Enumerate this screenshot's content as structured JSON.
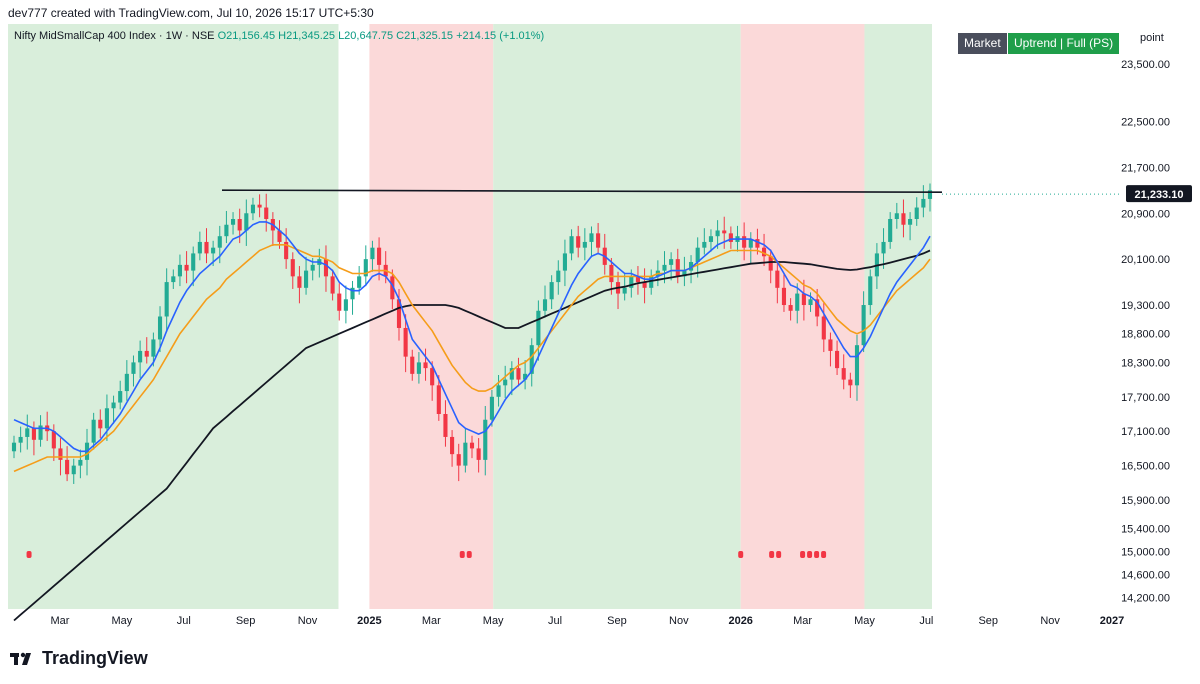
{
  "header": {
    "credit": "dev777 created with TradingView.com, Jul 10, 2026 15:17 UTC+5:30"
  },
  "legend": {
    "symbol": "Nifty MidSmallCap 400 Index · 1W · NSE",
    "ohlc": "O21,156.45  H21,345.25  L20,647.75  C21,325.15  +214.15 (+1.01%)"
  },
  "badges": {
    "market": "Market",
    "trend": "Uptrend | Full (PS)"
  },
  "scale_mode": "point",
  "last_price_label": "21,233.10",
  "footer": {
    "brand": "TradingView",
    "logo_icon": "tradingview-logo-icon"
  },
  "colors": {
    "up": "#22ab94",
    "down": "#f23645",
    "band_green": "#d9eedb",
    "band_red": "#fbd9d9",
    "ema_fast": "#2962ff",
    "ema_mid": "#f59d1a",
    "sma_long": "#131722",
    "price_tag_bg": "#131722"
  },
  "chart_data": {
    "type": "candlestick",
    "title": "Nifty MidSmallCap 400 Index · 1W · NSE",
    "xlabel": "",
    "ylabel": "",
    "grid": false,
    "x_ticks": [
      "Mar",
      "May",
      "Jul",
      "Sep",
      "Nov",
      "2025",
      "Mar",
      "May",
      "Jul",
      "Sep",
      "Nov",
      "2026",
      "Mar",
      "May",
      "Jul",
      "Sep",
      "Nov",
      "2027"
    ],
    "y_ticks": [
      23500,
      22500,
      21700,
      20900,
      20100,
      19300,
      18800,
      18300,
      17700,
      17100,
      16500,
      15900,
      15400,
      15000,
      14600,
      14200
    ],
    "ylim": [
      14000,
      24200
    ],
    "resistance_level": 21233.1,
    "regime_bands": [
      {
        "from": "2024-02",
        "to": "2024-12",
        "regime": "uptrend"
      },
      {
        "from": "2025-01",
        "to": "2025-05",
        "regime": "downtrend"
      },
      {
        "from": "2025-05",
        "to": "2026-01",
        "regime": "uptrend"
      },
      {
        "from": "2026-01",
        "to": "2026-05",
        "regime": "downtrend"
      },
      {
        "from": "2026-05",
        "to": "2026-07",
        "regime": "uptrend"
      }
    ],
    "closes": [
      16900,
      17000,
      17150,
      16950,
      17200,
      17100,
      16800,
      16600,
      16350,
      16500,
      16600,
      16900,
      17300,
      17150,
      17500,
      17600,
      17800,
      18100,
      18300,
      18500,
      18400,
      18700,
      19100,
      19700,
      19800,
      20000,
      19900,
      20200,
      20400,
      20200,
      20300,
      20500,
      20700,
      20800,
      20600,
      20900,
      21050,
      21000,
      20800,
      20600,
      20400,
      20100,
      19800,
      19600,
      19900,
      20000,
      20100,
      19800,
      19500,
      19200,
      19400,
      19600,
      19800,
      20100,
      20300,
      20000,
      19800,
      19400,
      18900,
      18400,
      18100,
      18300,
      18200,
      17900,
      17400,
      17000,
      16700,
      16500,
      16900,
      16800,
      16600,
      17300,
      17700,
      17900,
      18000,
      18200,
      18000,
      18100,
      18600,
      19200,
      19400,
      19700,
      19900,
      20200,
      20500,
      20300,
      20400,
      20550,
      20300,
      20000,
      19700,
      19500,
      19600,
      19800,
      19700,
      19600,
      19800,
      19900,
      20000,
      20100,
      19800,
      19900,
      20050,
      20300,
      20400,
      20500,
      20600,
      20550,
      20400,
      20500,
      20300,
      20450,
      20300,
      20150,
      19900,
      19600,
      19300,
      19200,
      19500,
      19300,
      19400,
      19100,
      18700,
      18500,
      18200,
      18000,
      17900,
      18600,
      19300,
      19800,
      20200,
      20400,
      20800,
      20900,
      20700,
      20800,
      21000,
      21150,
      21300
    ],
    "ema_fast": [
      17300,
      17250,
      17200,
      17150,
      17150,
      17150,
      17100,
      17000,
      16900,
      16800,
      16750,
      16750,
      16850,
      16950,
      17100,
      17250,
      17400,
      17600,
      17800,
      18000,
      18150,
      18300,
      18550,
      18850,
      19100,
      19350,
      19550,
      19700,
      19850,
      19950,
      20050,
      20150,
      20300,
      20450,
      20500,
      20600,
      20700,
      20750,
      20750,
      20700,
      20600,
      20500,
      20350,
      20200,
      20100,
      20050,
      20050,
      20000,
      19900,
      19700,
      19600,
      19550,
      19550,
      19650,
      19800,
      19850,
      19800,
      19650,
      19400,
      19050,
      18700,
      18550,
      18400,
      18250,
      18000,
      17750,
      17500,
      17250,
      17150,
      17100,
      17050,
      17100,
      17250,
      17450,
      17650,
      17800,
      17900,
      18000,
      18150,
      18400,
      18650,
      18900,
      19150,
      19400,
      19650,
      19850,
      20000,
      20150,
      20200,
      20150,
      20050,
      19950,
      19850,
      19850,
      19800,
      19750,
      19750,
      19800,
      19850,
      19900,
      19900,
      19900,
      19950,
      20050,
      20150,
      20250,
      20350,
      20400,
      20450,
      20450,
      20450,
      20450,
      20400,
      20350,
      20250,
      20050,
      19850,
      19650,
      19600,
      19500,
      19450,
      19350,
      19150,
      18950,
      18750,
      18550,
      18400,
      18400,
      18550,
      18750,
      19000,
      19250,
      19500,
      19700,
      19850,
      20000,
      20150,
      20300,
      20500
    ],
    "ema_mid": [
      16400,
      16450,
      16500,
      16550,
      16600,
      16650,
      16650,
      16650,
      16650,
      16650,
      16650,
      16700,
      16800,
      16900,
      17000,
      17100,
      17250,
      17400,
      17550,
      17700,
      17850,
      18000,
      18200,
      18400,
      18600,
      18800,
      18950,
      19100,
      19250,
      19400,
      19500,
      19600,
      19750,
      19850,
      19950,
      20050,
      20150,
      20250,
      20300,
      20350,
      20350,
      20350,
      20300,
      20250,
      20200,
      20150,
      20150,
      20100,
      20050,
      19950,
      19900,
      19850,
      19850,
      19850,
      19900,
      19900,
      19900,
      19850,
      19700,
      19500,
      19300,
      19150,
      19000,
      18850,
      18650,
      18450,
      18250,
      18100,
      17950,
      17850,
      17800,
      17800,
      17850,
      17950,
      18050,
      18150,
      18250,
      18300,
      18400,
      18550,
      18700,
      18850,
      19000,
      19150,
      19300,
      19450,
      19550,
      19650,
      19750,
      19800,
      19800,
      19800,
      19800,
      19800,
      19800,
      19800,
      19800,
      19850,
      19850,
      19900,
      19900,
      19900,
      19950,
      20000,
      20050,
      20100,
      20150,
      20200,
      20250,
      20250,
      20250,
      20250,
      20250,
      20200,
      20150,
      20050,
      19950,
      19850,
      19750,
      19650,
      19600,
      19500,
      19350,
      19200,
      19050,
      18950,
      18850,
      18800,
      18850,
      18950,
      19100,
      19250,
      19400,
      19550,
      19650,
      19750,
      19850,
      19950,
      20100
    ],
    "sma_long": [
      13800,
      13900,
      14000,
      14100,
      14200,
      14300,
      14400,
      14500,
      14600,
      14700,
      14800,
      14900,
      15000,
      15100,
      15200,
      15300,
      15400,
      15500,
      15600,
      15700,
      15800,
      15900,
      16000,
      16100,
      16250,
      16400,
      16550,
      16700,
      16850,
      17000,
      17150,
      17250,
      17350,
      17450,
      17550,
      17650,
      17750,
      17850,
      17950,
      18050,
      18150,
      18250,
      18350,
      18450,
      18550,
      18600,
      18650,
      18700,
      18750,
      18800,
      18850,
      18900,
      18950,
      19000,
      19050,
      19100,
      19150,
      19200,
      19250,
      19280,
      19300,
      19300,
      19300,
      19300,
      19300,
      19300,
      19280,
      19250,
      19200,
      19150,
      19100,
      19050,
      19000,
      18950,
      18900,
      18900,
      18900,
      18950,
      19000,
      19050,
      19100,
      19150,
      19200,
      19250,
      19300,
      19350,
      19400,
      19450,
      19500,
      19550,
      19580,
      19600,
      19620,
      19650,
      19680,
      19700,
      19720,
      19740,
      19760,
      19780,
      19800,
      19820,
      19840,
      19860,
      19880,
      19900,
      19920,
      19940,
      19960,
      19980,
      20000,
      20020,
      20030,
      20040,
      20050,
      20050,
      20050,
      20040,
      20030,
      20020,
      20010,
      19990,
      19970,
      19950,
      19930,
      19920,
      19910,
      19920,
      19940,
      19960,
      19990,
      20010,
      20040,
      20070,
      20100,
      20130,
      20160,
      20200,
      20250
    ],
    "signal_markers": [
      "2024-02",
      "2025-04",
      "2025-04",
      "2026-01",
      "2026-02",
      "2026-02",
      "2026-03",
      "2026-03",
      "2026-03",
      "2026-03"
    ]
  }
}
